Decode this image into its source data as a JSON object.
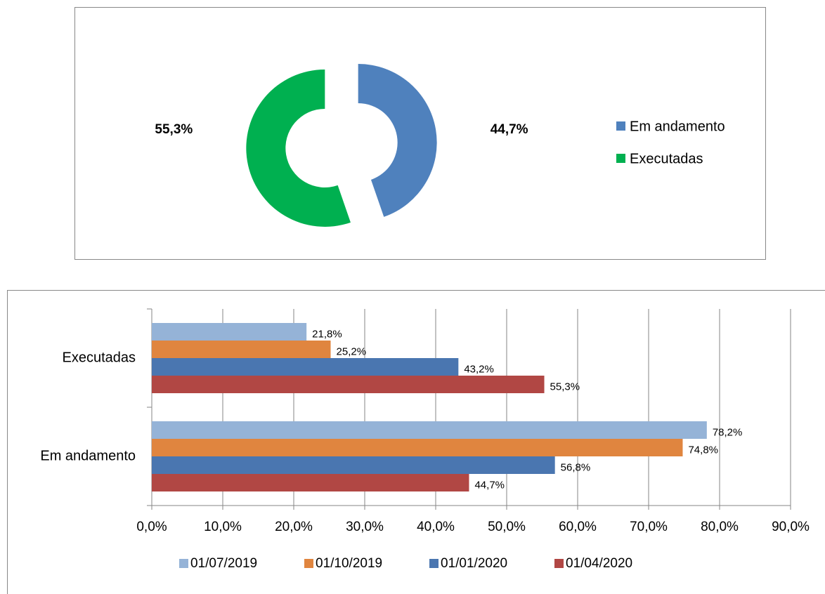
{
  "chart_data": [
    {
      "type": "donut",
      "categories": [
        "Em andamento",
        "Executadas"
      ],
      "values": [
        44.7,
        55.3
      ],
      "value_labels": [
        "44,7%",
        "55,3%"
      ],
      "colors": [
        "#4f81bd",
        "#00b050"
      ]
    },
    {
      "type": "hbar",
      "categories": [
        "Executadas",
        "Em andamento"
      ],
      "series": [
        {
          "name": "01/07/2019",
          "color": "#95b3d7",
          "values": [
            21.8,
            78.2
          ],
          "value_labels": [
            "21,8%",
            "78,2%"
          ]
        },
        {
          "name": "01/10/2019",
          "color": "#e0853f",
          "values": [
            25.2,
            74.8
          ],
          "value_labels": [
            "25,2%",
            "74,8%"
          ]
        },
        {
          "name": "01/01/2020",
          "color": "#4a76b0",
          "values": [
            43.2,
            56.8
          ],
          "value_labels": [
            "43,2%",
            "56,8%"
          ]
        },
        {
          "name": "01/04/2020",
          "color": "#b14744",
          "values": [
            55.3,
            44.7
          ],
          "value_labels": [
            "55,3%",
            "44,7%"
          ]
        }
      ],
      "xlim": [
        0,
        90
      ],
      "xticks": [
        {
          "value": 0,
          "label": "0,0%"
        },
        {
          "value": 10,
          "label": "10,0%"
        },
        {
          "value": 20,
          "label": "20,0%"
        },
        {
          "value": 30,
          "label": "30,0%"
        },
        {
          "value": 40,
          "label": "40,0%"
        },
        {
          "value": 50,
          "label": "50,0%"
        },
        {
          "value": 60,
          "label": "60,0%"
        },
        {
          "value": 70,
          "label": "70,0%"
        },
        {
          "value": 80,
          "label": "80,0%"
        },
        {
          "value": 90,
          "label": "90,0%"
        }
      ],
      "grid": true
    }
  ]
}
